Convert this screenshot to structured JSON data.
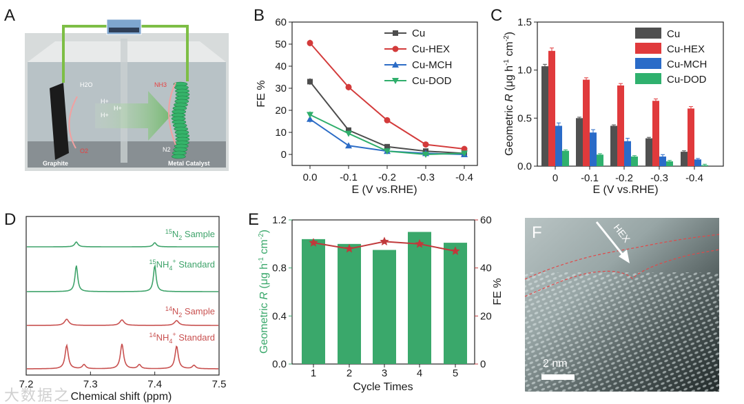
{
  "panels": {
    "A": {
      "letter": "A",
      "labels": {
        "h2o": "H2O",
        "o2": "O2",
        "h1": "H+",
        "h2": "H+",
        "h3": "H+",
        "nh3": "NH3",
        "n2": "N2",
        "graphite": "Graphite",
        "catalyst": "Metal Catalyst"
      }
    },
    "D": {
      "letter": "D",
      "xticks": [
        "7.2",
        "7.3",
        "7.4",
        "7.5"
      ],
      "xlabel": "Chemical shift (ppm)",
      "spectra": [
        {
          "label_sup": "15",
          "label_base": "N",
          "label_sub": "2",
          "label_rest": " Sample",
          "color": "#3ea36a"
        },
        {
          "label_sup": "15",
          "label_base": "NH",
          "label_sub": "4",
          "label_charge": "+",
          "label_rest": " Standard",
          "color": "#3ea36a"
        },
        {
          "label_sup": "14",
          "label_base": "N",
          "label_sub": "2",
          "label_rest": " Sample",
          "color": "#c8504f"
        },
        {
          "label_sup": "14",
          "label_base": "NH",
          "label_sub": "4",
          "label_charge": "+",
          "label_rest": " Standard",
          "color": "#c8504f"
        }
      ]
    },
    "F": {
      "letter": "F",
      "arrow_label": "HEX",
      "scale_label": "2 nm"
    }
  },
  "chart_data": [
    {
      "id": "B",
      "letter": "B",
      "type": "line",
      "categories": [
        "0.0",
        "-0.1",
        "-0.2",
        "-0.3",
        "-0.4"
      ],
      "ylabel": "FE %",
      "xlabel": "E (V vs.RHE)",
      "ylim": [
        -5,
        60
      ],
      "yticks": [
        "0",
        "10",
        "20",
        "30",
        "40",
        "50",
        "60"
      ],
      "series": [
        {
          "name": "Cu",
          "color": "#4d4d4d",
          "marker": "square",
          "values": [
            33,
            11,
            3.5,
            1.5,
            0.5
          ],
          "errors": [
            1.5,
            1,
            0.5,
            0.3,
            0.3
          ]
        },
        {
          "name": "Cu-HEX",
          "color": "#d33b3b",
          "marker": "circle",
          "values": [
            50.5,
            30.5,
            15.5,
            4.5,
            2.5
          ],
          "errors": [
            1.5,
            1.5,
            0.8,
            0.4,
            0.3
          ]
        },
        {
          "name": "Cu-MCH",
          "color": "#2c6cc6",
          "marker": "tri-up",
          "values": [
            16,
            4,
            1.5,
            0.5,
            0
          ],
          "errors": [
            1.5,
            0.6,
            0.4,
            0.3,
            0.2
          ]
        },
        {
          "name": "Cu-DOD",
          "color": "#2fae6b",
          "marker": "tri-down",
          "values": [
            18,
            9.5,
            1.5,
            0,
            0.5
          ],
          "errors": [
            1.5,
            0.8,
            0.4,
            0.2,
            0.2
          ]
        }
      ]
    },
    {
      "id": "C",
      "letter": "C",
      "type": "bar",
      "categories": [
        "0",
        "-0.1",
        "-0.2",
        "-0.3",
        "-0.4"
      ],
      "ylabel_main": "Geometric ",
      "ylabel_r": "R",
      "ylabel_units_a": " (μg h",
      "ylabel_units_sup1": "-1",
      "ylabel_units_b": " cm",
      "ylabel_units_sup2": "-2",
      "ylabel_units_c": ")",
      "xlabel": "E (V vs.RHE)",
      "ylim": [
        0,
        1.5
      ],
      "yticks": [
        "0.0",
        "0.5",
        "1.0",
        "1.5"
      ],
      "series": [
        {
          "name": "Cu",
          "color": "#505050",
          "values": [
            1.04,
            0.5,
            0.42,
            0.29,
            0.15
          ],
          "errors": [
            0.02,
            0.01,
            0.01,
            0.01,
            0.01
          ]
        },
        {
          "name": "Cu-HEX",
          "color": "#e03a3c",
          "values": [
            1.2,
            0.9,
            0.84,
            0.68,
            0.6
          ],
          "errors": [
            0.03,
            0.02,
            0.02,
            0.02,
            0.02
          ]
        },
        {
          "name": "Cu-MCH",
          "color": "#2a6bc8",
          "values": [
            0.42,
            0.35,
            0.26,
            0.1,
            0.07
          ],
          "errors": [
            0.03,
            0.03,
            0.03,
            0.02,
            0.01
          ]
        },
        {
          "name": "Cu-DOD",
          "color": "#2fb16e",
          "values": [
            0.16,
            0.12,
            0.1,
            0.05,
            0.01
          ],
          "errors": [
            0.01,
            0.01,
            0.01,
            0.01,
            0.01
          ]
        }
      ]
    },
    {
      "id": "E",
      "letter": "E",
      "type": "bar+line",
      "categories": [
        "1",
        "2",
        "3",
        "4",
        "5"
      ],
      "xlabel": "Cycle Times",
      "ylabel_left_main": "Geometric ",
      "ylabel_left_r": "R",
      "ylabel_left_units_a": " (μg h",
      "ylabel_left_units_sup1": "-1",
      "ylabel_left_units_b": " cm",
      "ylabel_left_units_sup2": "-2",
      "ylabel_left_units_c": ")",
      "ylabel_right": "FE %",
      "ylim_left": [
        0,
        1.2
      ],
      "ylim_right": [
        0,
        60
      ],
      "yticks_left": [
        "0.0",
        "0.4",
        "0.8",
        "1.2"
      ],
      "yticks_right": [
        "0",
        "20",
        "40",
        "60"
      ],
      "bar_color": "#3aa86b",
      "line_color": "#c0393b",
      "bars": {
        "name": "Geometric R",
        "values": [
          1.04,
          1.0,
          0.95,
          1.1,
          1.01
        ]
      },
      "line": {
        "name": "FE %",
        "values": [
          50.5,
          48,
          51,
          50,
          47
        ]
      }
    }
  ],
  "watermark": "大数据之"
}
